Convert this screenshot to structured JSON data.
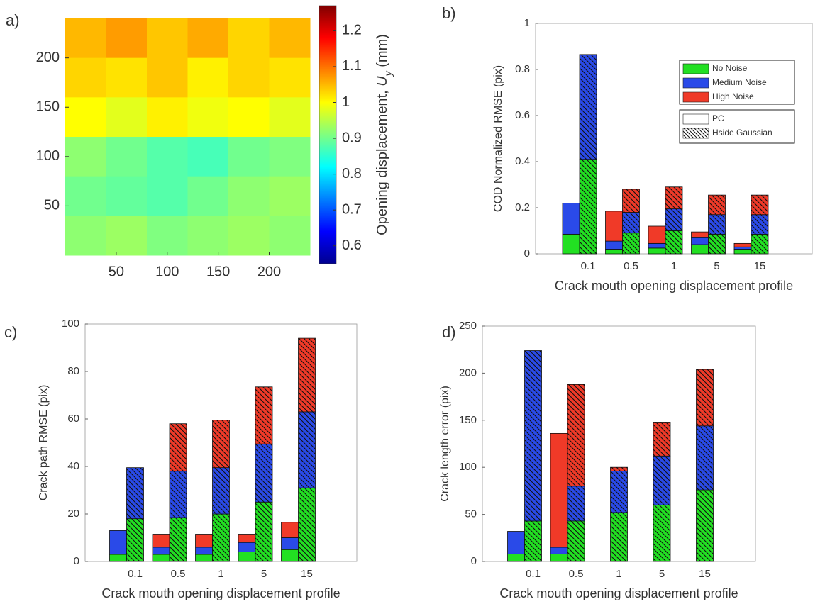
{
  "chart_data": [
    {
      "type": "heatmap",
      "panel_label": "a)",
      "values": [
        [
          1.05,
          1.07,
          1.04,
          1.06,
          1.03,
          1.05
        ],
        [
          1.03,
          1.02,
          1.04,
          1.01,
          1.03,
          1.02
        ],
        [
          1.0,
          0.98,
          1.01,
          0.99,
          1.0,
          0.98
        ],
        [
          0.92,
          0.9,
          0.88,
          0.87,
          0.9,
          0.91
        ],
        [
          0.9,
          0.89,
          0.88,
          0.9,
          0.92,
          0.93
        ],
        [
          0.92,
          0.93,
          0.91,
          0.92,
          0.93,
          0.92
        ]
      ],
      "xlim": [
        0,
        240
      ],
      "ylim": [
        0,
        240
      ],
      "xticks": [
        50,
        100,
        150,
        200
      ],
      "yticks": [
        50,
        100,
        150,
        200
      ],
      "colormap": "jet",
      "clim": [
        0.55,
        1.27
      ],
      "cticks": [
        0.6,
        0.7,
        0.8,
        0.9,
        1,
        1.1,
        1.2
      ],
      "colorbar_label": [
        "Opening displacement, ",
        "U",
        "y",
        " (mm)"
      ]
    },
    {
      "type": "bar",
      "panel_label": "b)",
      "y_label": "COD Normalized RMSE (pix)",
      "x_label": "Crack mouth opening displacement profile",
      "categories": [
        "0.1",
        "0.5",
        "1",
        "5",
        "15"
      ],
      "bar_groups": [
        {
          "name": "PC",
          "hatch": false
        },
        {
          "name": "Hside Gaussian",
          "hatch": true
        }
      ],
      "series": [
        {
          "name": "No Noise",
          "color": "#22e022",
          "values": [
            [
              0.085,
              0.02,
              0.025,
              0.04,
              0.02
            ],
            [
              0.41,
              0.09,
              0.1,
              0.085,
              0.085
            ]
          ]
        },
        {
          "name": "Medium Noise",
          "color": "#2a4ae8",
          "values": [
            [
              0.135,
              0.035,
              0.02,
              0.03,
              0.01
            ],
            [
              0.455,
              0.09,
              0.095,
              0.085,
              0.085
            ]
          ]
        },
        {
          "name": "High Noise",
          "color": "#f03a28",
          "values": [
            [
              0,
              0.13,
              0.075,
              0.025,
              0.015
            ],
            [
              0,
              0.1,
              0.095,
              0.085,
              0.085
            ]
          ]
        }
      ],
      "ylim": [
        0,
        1
      ],
      "yticks": [
        0,
        0.2,
        0.4,
        0.6,
        0.8,
        1
      ],
      "legend": "upper right"
    },
    {
      "type": "bar",
      "panel_label": "c)",
      "y_label": "Crack path RMSE (pix)",
      "x_label": "Crack mouth opening displacement profile",
      "categories": [
        "0.1",
        "0.5",
        "1",
        "5",
        "15"
      ],
      "bar_groups": [
        {
          "hatch": false
        },
        {
          "hatch": true
        }
      ],
      "series": [
        {
          "color": "#22e022",
          "values": [
            [
              3,
              3,
              3,
              4,
              5
            ],
            [
              18,
              18.5,
              20,
              25,
              31
            ]
          ]
        },
        {
          "color": "#2a4ae8",
          "values": [
            [
              10,
              3,
              3,
              4,
              5
            ],
            [
              21.5,
              19.5,
              19.5,
              24.5,
              32
            ]
          ]
        },
        {
          "color": "#f03a28",
          "values": [
            [
              0,
              5.5,
              5.5,
              3.5,
              6.5
            ],
            [
              0,
              20,
              20,
              24,
              31
            ]
          ]
        }
      ],
      "ylim": [
        0,
        100
      ],
      "yticks": [
        0,
        20,
        40,
        60,
        80,
        100
      ]
    },
    {
      "type": "bar",
      "panel_label": "d)",
      "y_label": "Crack length error (pix)",
      "x_label": "Crack mouth opening displacement profile",
      "categories": [
        "0.1",
        "0.5",
        "1",
        "5",
        "15"
      ],
      "bar_groups": [
        {
          "hatch": false
        },
        {
          "hatch": true
        }
      ],
      "series": [
        {
          "color": "#22e022",
          "values": [
            [
              8,
              8,
              0,
              0,
              0
            ],
            [
              43,
              43,
              52,
              60,
              76
            ]
          ]
        },
        {
          "color": "#2a4ae8",
          "values": [
            [
              24,
              7,
              0,
              0,
              0
            ],
            [
              181,
              37,
              44,
              52,
              68
            ]
          ]
        },
        {
          "color": "#f03a28",
          "values": [
            [
              0,
              121,
              0,
              0,
              0
            ],
            [
              0,
              108,
              4,
              36,
              60
            ]
          ]
        }
      ],
      "ylim": [
        0,
        250
      ],
      "yticks": [
        0,
        50,
        100,
        150,
        200,
        250
      ]
    }
  ]
}
